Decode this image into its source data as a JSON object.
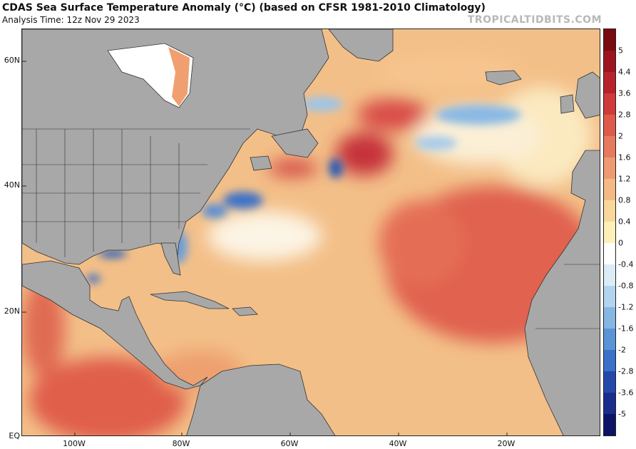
{
  "header": {
    "title": "CDAS Sea Surface Temperature Anomaly (°C) (based on CFSR 1981-2010 Climatology)",
    "subtitle": "Analysis Time: 12z Nov 29 2023",
    "brand": "TROPICALTIDBITS.COM"
  },
  "map": {
    "lat_labels": [
      "60N",
      "40N",
      "20N",
      "EQ"
    ],
    "lon_labels": [
      "100W",
      "80W",
      "60W",
      "40W",
      "20W"
    ],
    "land_color": "#a8a8a8",
    "border_color": "#333333"
  },
  "colorbar": {
    "labels": [
      "5",
      "4.4",
      "3.6",
      "2.8",
      "2",
      "1.6",
      "1.2",
      "0.8",
      "0.4",
      "0",
      "-0.4",
      "-0.8",
      "-1.2",
      "-1.6",
      "-2",
      "-2.8",
      "-3.6",
      "-5"
    ],
    "colors_top_to_bottom": [
      "#7a0a12",
      "#9c1420",
      "#b8222c",
      "#cf3a3a",
      "#de5a4c",
      "#e67a5e",
      "#ee9a72",
      "#f4b985",
      "#f9d79a",
      "#fdf0b8",
      "#ffffff",
      "#dcecf6",
      "#b3d4ee",
      "#86b6e2",
      "#5b94d6",
      "#3a70c8",
      "#2449aa",
      "#1a2c8c",
      "#0d1466"
    ]
  }
}
